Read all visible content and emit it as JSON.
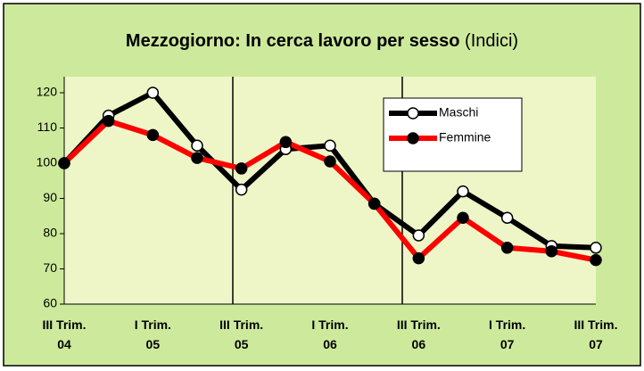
{
  "chart_data": {
    "type": "line",
    "title": "Mezzogiorno: In cerca lavoro per sesso",
    "subtitle": "(Indici)",
    "categories": [
      "III Trim. 04",
      null,
      "I Trim. 05",
      null,
      "III Trim. 05",
      null,
      "I Trim. 06",
      null,
      "III Trim. 06",
      null,
      "I Trim. 07",
      null,
      "III Trim. 07"
    ],
    "series": [
      {
        "name": "Maschi",
        "color": "#000000",
        "values": [
          100,
          113.5,
          120,
          105,
          92.5,
          104,
          105,
          88.5,
          79.5,
          92,
          84.5,
          76.5,
          76
        ]
      },
      {
        "name": "Femmine",
        "color": "#ff0000",
        "values": [
          100,
          112,
          108,
          101.5,
          98.5,
          106,
          100.5,
          88.5,
          73,
          84.5,
          76,
          75,
          72.5
        ]
      }
    ],
    "ylim": [
      60,
      120
    ],
    "yticks": [
      60,
      70,
      80,
      90,
      100,
      110,
      120
    ],
    "grid": false,
    "legend": "top-right"
  }
}
